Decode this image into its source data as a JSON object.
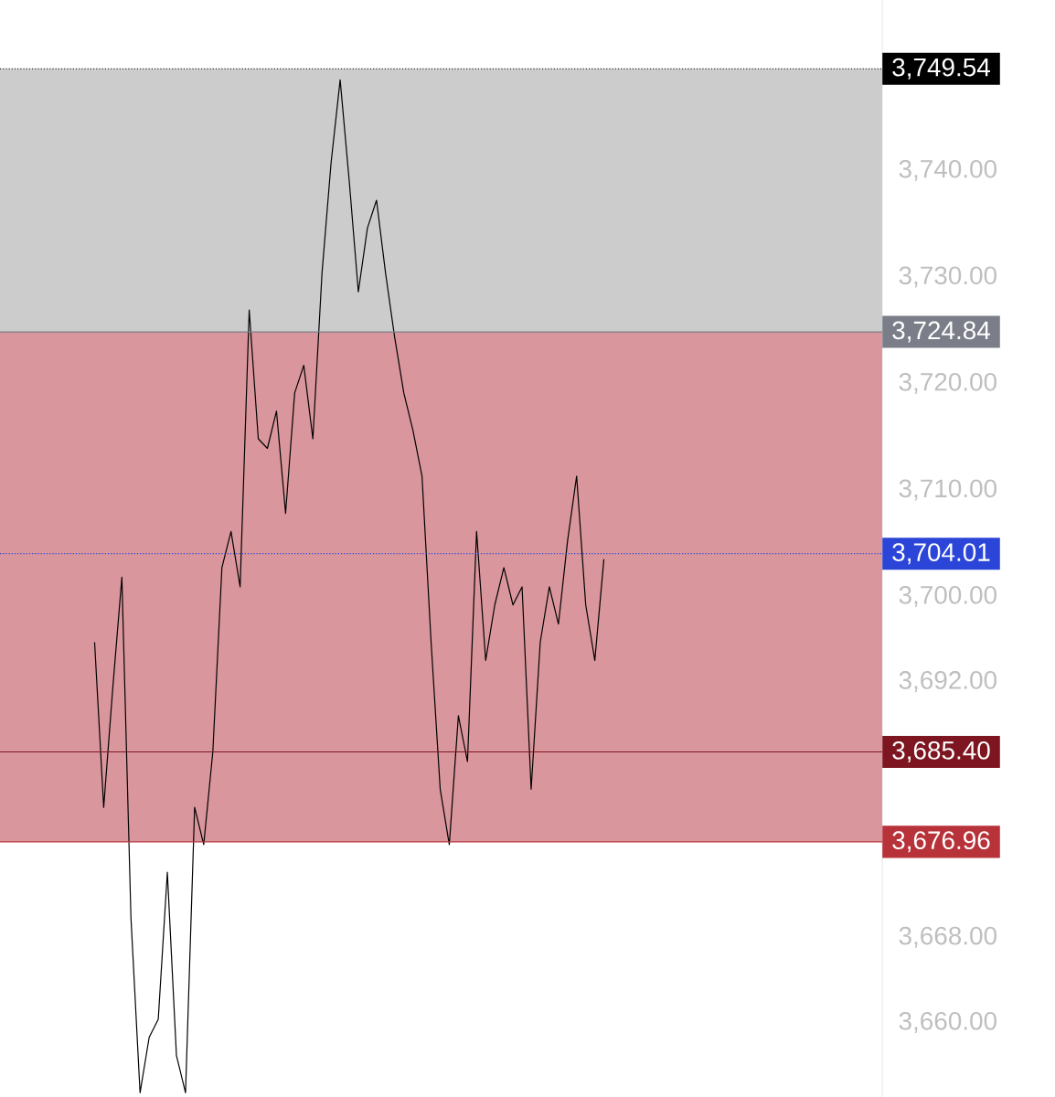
{
  "chart_data": {
    "type": "line",
    "tick_labels": "y",
    "marker": "none",
    "grid": false,
    "categories": [
      null,
      null,
      null,
      null,
      null,
      null,
      null,
      null,
      null,
      null,
      null,
      null,
      null,
      null,
      null,
      null,
      null,
      null,
      null,
      null,
      null,
      null,
      null,
      null,
      null,
      null,
      null,
      null,
      null,
      null,
      null,
      null,
      null,
      null,
      null,
      null,
      null,
      null,
      null,
      null,
      null,
      null,
      null,
      null,
      null,
      null,
      null,
      null,
      null,
      null,
      null,
      null,
      null,
      null,
      null,
      null,
      null
    ],
    "series": [
      {
        "color": "#000000",
        "values": [
          3695.7,
          3680.2,
          3691.4,
          3701.8,
          3669.8,
          3653.4,
          3658.6,
          3660.3,
          3674.1,
          3656.9,
          3653.4,
          3680.2,
          3676.7,
          3685.4,
          3702.7,
          3706.1,
          3700.9,
          3726.9,
          3714.8,
          3713.9,
          3717.4,
          3707.8,
          3719.1,
          3721.7,
          3714.8,
          3730.3,
          3740.7,
          3748.5,
          3739.0,
          3728.6,
          3734.6,
          3737.2,
          3730.3,
          3724.3,
          3719.1,
          3715.6,
          3711.3,
          3695.7,
          3681.9,
          3676.7,
          3688.8,
          3684.5,
          3706.1,
          3694.0,
          3699.2,
          3702.7,
          3699.2,
          3700.9,
          3681.9,
          3695.7,
          3700.9,
          3697.4,
          3705.2,
          3711.3,
          3699.2,
          3694.0,
          3703.5
        ]
      }
    ],
    "ylim": [
      3653,
      3756
    ],
    "yticks": [
      {
        "value": 3740,
        "label": "3,740.00"
      },
      {
        "value": 3730,
        "label": "3,730.00"
      },
      {
        "value": 3720,
        "label": "3,720.00"
      },
      {
        "value": 3710,
        "label": "3,710.00"
      },
      {
        "value": 3700,
        "label": "3,700.00"
      },
      {
        "value": 3692,
        "label": "3,692.00"
      },
      {
        "value": 3668,
        "label": "3,668.00"
      },
      {
        "value": 3660,
        "label": "3,660.00"
      }
    ],
    "bands": [
      {
        "axis": "y",
        "from": 3724.84,
        "to": 3749.54,
        "color": "#cccccc"
      },
      {
        "axis": "y",
        "from": 3676.96,
        "to": 3724.84,
        "color": "#d9969c"
      }
    ],
    "ref_lines": [
      {
        "axis": "y",
        "value": 3749.54,
        "label": "3,749.54",
        "color": "#000000",
        "line_style": "dotted"
      },
      {
        "axis": "y",
        "value": 3724.84,
        "label": "3,724.84",
        "color": "#7b7e88",
        "line_style": "solid"
      },
      {
        "axis": "y",
        "value": 3704.01,
        "label": "3,704.01",
        "color": "#2b45d8",
        "line_style": "dotted"
      },
      {
        "axis": "y",
        "value": 3685.4,
        "label": "3,685.40",
        "color": "#7d1620",
        "line_style": "solid"
      },
      {
        "axis": "y",
        "value": 3676.96,
        "label": "3,676.96",
        "color": "#b8323a",
        "line_style": "solid"
      }
    ]
  }
}
